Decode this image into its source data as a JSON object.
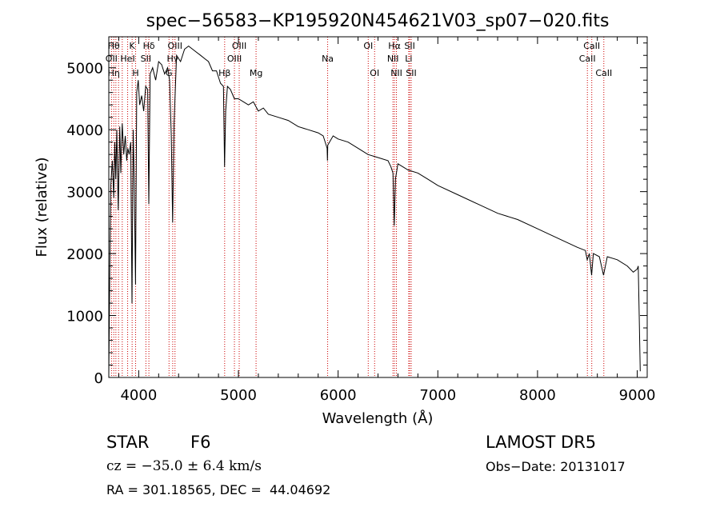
{
  "chart_data": {
    "type": "line",
    "title": "spec−56583−KP195920N454621V03_sp07−020.fits",
    "xlabel": "Wavelength (Å)",
    "ylabel": "Flux (relative)",
    "xlim": [
      3700,
      9100
    ],
    "ylim": [
      0,
      5500
    ],
    "xticks": [
      4000,
      5000,
      6000,
      7000,
      8000,
      9000
    ],
    "yticks": [
      0,
      1000,
      2000,
      3000,
      4000,
      5000
    ],
    "grid": false,
    "line_color": "#000000",
    "marker_color": "#cc0000",
    "series": [
      {
        "x": [
          3700,
          3710,
          3720,
          3735,
          3750,
          3760,
          3770,
          3780,
          3795,
          3810,
          3820,
          3835,
          3850,
          3865,
          3880,
          3890,
          3905,
          3920,
          3933,
          3945,
          3955,
          3968,
          3980,
          3995,
          4010,
          4030,
          4050,
          4070,
          4090,
          4101,
          4115,
          4140,
          4170,
          4200,
          4230,
          4260,
          4290,
          4310,
          4327,
          4340,
          4355,
          4380,
          4420,
          4460,
          4500,
          4540,
          4580,
          4620,
          4660,
          4700,
          4740,
          4780,
          4820,
          4850,
          4861,
          4872,
          4890,
          4920,
          4960,
          5000,
          5050,
          5100,
          5150,
          5200,
          5250,
          5300,
          5400,
          5500,
          5600,
          5700,
          5800,
          5850,
          5890,
          5893,
          5896,
          5950,
          6000,
          6100,
          6200,
          6300,
          6400,
          6500,
          6530,
          6550,
          6563,
          6575,
          6600,
          6650,
          6700,
          6800,
          6900,
          7000,
          7200,
          7400,
          7600,
          7800,
          8000,
          8200,
          8400,
          8480,
          8498,
          8520,
          8542,
          8560,
          8620,
          8662,
          8700,
          8800,
          8900,
          8960,
          9000,
          9010,
          9020,
          9030
        ],
        "y": [
          50,
          1700,
          3100,
          3500,
          2900,
          3800,
          3200,
          4000,
          2700,
          4050,
          3300,
          4100,
          3600,
          3900,
          3500,
          3700,
          3600,
          3800,
          1200,
          4000,
          3200,
          1500,
          4600,
          4800,
          4400,
          4550,
          4300,
          4700,
          4650,
          2800,
          4900,
          5000,
          4800,
          5100,
          5050,
          4900,
          5000,
          4800,
          3900,
          2500,
          4100,
          5200,
          5100,
          5300,
          5350,
          5300,
          5250,
          5200,
          5150,
          5100,
          4950,
          4950,
          4750,
          4700,
          3400,
          4300,
          4700,
          4650,
          4500,
          4500,
          4450,
          4400,
          4450,
          4300,
          4350,
          4250,
          4200,
          4150,
          4050,
          4000,
          3950,
          3900,
          3700,
          3500,
          3750,
          3900,
          3850,
          3800,
          3700,
          3600,
          3550,
          3500,
          3400,
          3300,
          2450,
          3200,
          3450,
          3400,
          3350,
          3300,
          3200,
          3100,
          2950,
          2800,
          2650,
          2550,
          2400,
          2250,
          2100,
          2050,
          1900,
          2000,
          1650,
          2000,
          1950,
          1650,
          1950,
          1900,
          1800,
          1700,
          1750,
          1800,
          1000,
          100
        ]
      }
    ],
    "line_markers": [
      {
        "x": 3727,
        "row": 1,
        "label": "OII"
      },
      {
        "x": 3750,
        "row": 2,
        "label": "Hη"
      },
      {
        "x": 3771,
        "row": 2,
        "label": ""
      },
      {
        "x": 3798,
        "row": 2,
        "label": ""
      },
      {
        "x": 3835,
        "row": 2,
        "label": ""
      },
      {
        "x": 3889,
        "row": 1,
        "label": "HeI"
      },
      {
        "x": 3934,
        "row": 0,
        "label": "K"
      },
      {
        "x": 3969,
        "row": 2,
        "label": "H"
      },
      {
        "x": 4072,
        "row": 1,
        "label": "SII"
      },
      {
        "x": 4102,
        "row": 0,
        "label": "Hδ"
      },
      {
        "x": 4304,
        "row": 2,
        "label": "G"
      },
      {
        "x": 4341,
        "row": 1,
        "label": "Hγ"
      },
      {
        "x": 4364,
        "row": 0,
        "label": "OIII"
      },
      {
        "x": 4862,
        "row": 2,
        "label": "Hβ"
      },
      {
        "x": 4960,
        "row": 1,
        "label": "OIII"
      },
      {
        "x": 5008,
        "row": 0,
        "label": "OIII"
      },
      {
        "x": 5177,
        "row": 2,
        "label": "Mg"
      },
      {
        "x": 5895,
        "row": 1,
        "label": "Na"
      },
      {
        "x": 6302,
        "row": 0,
        "label": "OI"
      },
      {
        "x": 6366,
        "row": 2,
        "label": "OI"
      },
      {
        "x": 6550,
        "row": 1,
        "label": "NII"
      },
      {
        "x": 6565,
        "row": 0,
        "label": "Hα"
      },
      {
        "x": 6585,
        "row": 2,
        "label": "NII"
      },
      {
        "x": 6708,
        "row": 1,
        "label": "Li"
      },
      {
        "x": 6718,
        "row": 0,
        "label": "SII"
      },
      {
        "x": 6733,
        "row": 2,
        "label": "SII"
      },
      {
        "x": 8500,
        "row": 1,
        "label": "CaII"
      },
      {
        "x": 8544,
        "row": 0,
        "label": "CaII"
      },
      {
        "x": 8665,
        "row": 2,
        "label": "CaII"
      }
    ],
    "first_marker_label": "Hθ"
  },
  "info": {
    "object_class": "STAR",
    "subclass": "F6",
    "survey": "LAMOST DR5",
    "cz_line": "cz = −35.0 ± 6.4 km/s",
    "obs_date": "Obs−Date: 20131017",
    "coords": "RA = 301.18565, DEC =  44.04692"
  }
}
